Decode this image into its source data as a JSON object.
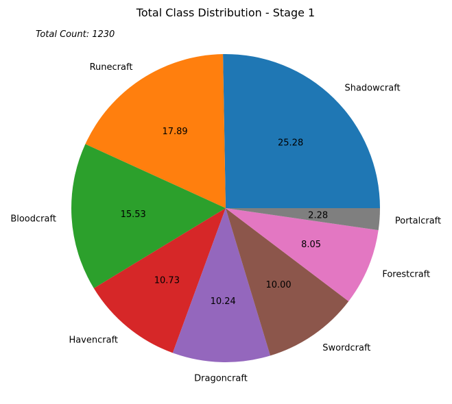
{
  "chart_data": {
    "type": "pie",
    "title": "Total Class Distribution - Stage 1",
    "annotation": "Total Count: 1230",
    "categories": [
      "Shadowcraft",
      "Runecraft",
      "Bloodcraft",
      "Havencraft",
      "Dragoncraft",
      "Swordcraft",
      "Forestcraft",
      "Portalcraft"
    ],
    "values": [
      25.28,
      17.89,
      15.53,
      10.73,
      10.24,
      10.0,
      8.05,
      2.28
    ],
    "value_labels": [
      "25.28",
      "17.89",
      "15.53",
      "10.73",
      "10.24",
      "10.00",
      "8.05",
      "2.28"
    ],
    "colors": [
      "#1f77b4",
      "#ff7f0e",
      "#2ca02c",
      "#d62728",
      "#9467bd",
      "#8c564b",
      "#e377c2",
      "#7f7f7f"
    ],
    "start_angle_deg": 0,
    "direction": "counterclockwise",
    "legend": "none"
  }
}
